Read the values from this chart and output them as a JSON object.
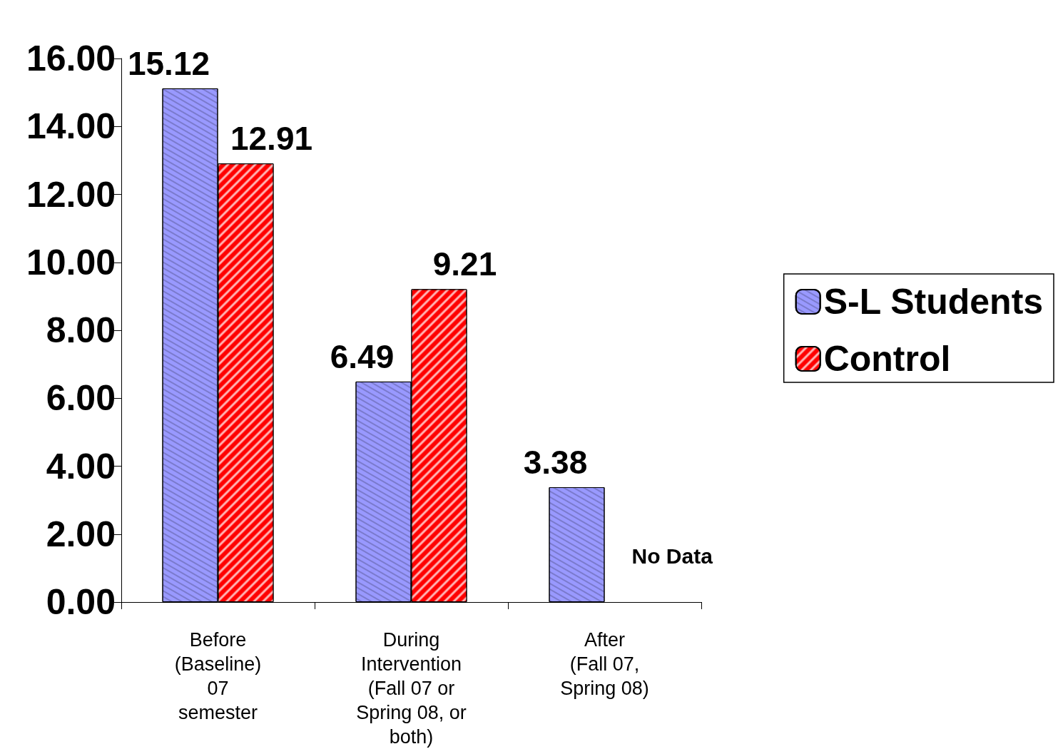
{
  "chart_data": {
    "type": "bar",
    "categories": [
      "Before\n(Baseline)\n07\nsemester",
      "During\nIntervention\n(Fall 07 or\nSpring 08, or\nboth)",
      "After\n(Fall 07,\nSpring 08)"
    ],
    "series": [
      {
        "name": "S-L Students",
        "color": "#9999ff",
        "values": [
          15.12,
          6.49,
          3.38
        ]
      },
      {
        "name": "Control",
        "color": "#ff0000",
        "values": [
          12.91,
          9.21,
          null
        ]
      }
    ],
    "ylim": [
      0,
      16
    ],
    "yticks": [
      {
        "value": 0,
        "label": "0.00"
      },
      {
        "value": 2,
        "label": "2.00"
      },
      {
        "value": 4,
        "label": "4.00"
      },
      {
        "value": 6,
        "label": "6.00"
      },
      {
        "value": 8,
        "label": "8.00"
      },
      {
        "value": 10,
        "label": "10.00"
      },
      {
        "value": 12,
        "label": "12.00"
      },
      {
        "value": 14,
        "label": "14.00"
      },
      {
        "value": 16,
        "label": "16.00"
      }
    ],
    "data_labels": true,
    "grid": false,
    "legend": "right",
    "annotations": [
      "No Data"
    ]
  }
}
